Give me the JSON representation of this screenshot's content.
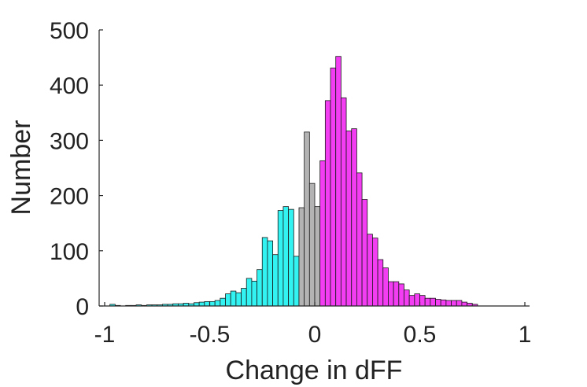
{
  "chart_data": {
    "type": "bar",
    "xlabel": "Change in dFF",
    "ylabel": "Number",
    "xlim": [
      -1,
      1
    ],
    "ylim": [
      0,
      500
    ],
    "xticks": [
      -1,
      -0.5,
      0,
      0.5,
      1
    ],
    "xtick_labels": [
      "-1",
      "-0.5",
      "0",
      "0.5",
      "1"
    ],
    "yticks": [
      0,
      100,
      200,
      300,
      400,
      500
    ],
    "ytick_labels": [
      "0",
      "100",
      "200",
      "300",
      "400",
      "500"
    ],
    "grid": false,
    "bin_width": 0.025,
    "series": [
      {
        "color": "#33f2f2",
        "bins": [
          {
            "x0": -0.975,
            "x1": -0.95,
            "y": 3
          },
          {
            "x0": -0.95,
            "x1": -0.925,
            "y": 1
          },
          {
            "x0": -0.9,
            "x1": -0.875,
            "y": 1
          },
          {
            "x0": -0.875,
            "x1": -0.85,
            "y": 1
          },
          {
            "x0": -0.85,
            "x1": -0.825,
            "y": 2
          },
          {
            "x0": -0.825,
            "x1": -0.8,
            "y": 1
          },
          {
            "x0": -0.8,
            "x1": -0.775,
            "y": 2
          },
          {
            "x0": -0.775,
            "x1": -0.75,
            "y": 2
          },
          {
            "x0": -0.75,
            "x1": -0.725,
            "y": 2
          },
          {
            "x0": -0.725,
            "x1": -0.7,
            "y": 3
          },
          {
            "x0": -0.7,
            "x1": -0.675,
            "y": 3
          },
          {
            "x0": -0.675,
            "x1": -0.65,
            "y": 4
          },
          {
            "x0": -0.65,
            "x1": -0.625,
            "y": 4
          },
          {
            "x0": -0.625,
            "x1": -0.6,
            "y": 5
          },
          {
            "x0": -0.6,
            "x1": -0.575,
            "y": 4
          },
          {
            "x0": -0.575,
            "x1": -0.55,
            "y": 6
          },
          {
            "x0": -0.55,
            "x1": -0.525,
            "y": 7
          },
          {
            "x0": -0.525,
            "x1": -0.5,
            "y": 8
          },
          {
            "x0": -0.5,
            "x1": -0.475,
            "y": 8
          },
          {
            "x0": -0.475,
            "x1": -0.45,
            "y": 10
          },
          {
            "x0": -0.45,
            "x1": -0.425,
            "y": 14
          },
          {
            "x0": -0.425,
            "x1": -0.4,
            "y": 22
          },
          {
            "x0": -0.4,
            "x1": -0.375,
            "y": 27
          },
          {
            "x0": -0.375,
            "x1": -0.35,
            "y": 24
          },
          {
            "x0": -0.35,
            "x1": -0.325,
            "y": 32
          },
          {
            "x0": -0.325,
            "x1": -0.3,
            "y": 50
          },
          {
            "x0": -0.3,
            "x1": -0.275,
            "y": 45
          },
          {
            "x0": -0.275,
            "x1": -0.25,
            "y": 66
          },
          {
            "x0": -0.25,
            "x1": -0.225,
            "y": 124
          },
          {
            "x0": -0.225,
            "x1": -0.2,
            "y": 118
          },
          {
            "x0": -0.2,
            "x1": -0.175,
            "y": 93
          },
          {
            "x0": -0.175,
            "x1": -0.15,
            "y": 173
          },
          {
            "x0": -0.15,
            "x1": -0.125,
            "y": 180
          },
          {
            "x0": -0.125,
            "x1": -0.1,
            "y": 175
          },
          {
            "x0": -0.1,
            "x1": -0.075,
            "y": 90
          }
        ]
      },
      {
        "color": "#b3b3b3",
        "bins": [
          {
            "x0": -0.075,
            "x1": -0.05,
            "y": 178
          },
          {
            "x0": -0.05,
            "x1": -0.025,
            "y": 315
          },
          {
            "x0": -0.025,
            "x1": 0,
            "y": 222
          },
          {
            "x0": 0,
            "x1": 0.025,
            "y": 180
          }
        ]
      },
      {
        "color": "#f23df2",
        "bins": [
          {
            "x0": 0.025,
            "x1": 0.05,
            "y": 263
          },
          {
            "x0": 0.05,
            "x1": 0.075,
            "y": 372
          },
          {
            "x0": 0.075,
            "x1": 0.1,
            "y": 431
          },
          {
            "x0": 0.1,
            "x1": 0.125,
            "y": 452
          },
          {
            "x0": 0.125,
            "x1": 0.15,
            "y": 377
          },
          {
            "x0": 0.15,
            "x1": 0.175,
            "y": 317
          },
          {
            "x0": 0.175,
            "x1": 0.2,
            "y": 321
          },
          {
            "x0": 0.2,
            "x1": 0.225,
            "y": 241
          },
          {
            "x0": 0.225,
            "x1": 0.25,
            "y": 193
          },
          {
            "x0": 0.25,
            "x1": 0.275,
            "y": 130
          },
          {
            "x0": 0.275,
            "x1": 0.3,
            "y": 123
          },
          {
            "x0": 0.3,
            "x1": 0.325,
            "y": 84
          },
          {
            "x0": 0.325,
            "x1": 0.35,
            "y": 69
          },
          {
            "x0": 0.35,
            "x1": 0.375,
            "y": 44
          },
          {
            "x0": 0.375,
            "x1": 0.4,
            "y": 44
          },
          {
            "x0": 0.4,
            "x1": 0.425,
            "y": 40
          },
          {
            "x0": 0.425,
            "x1": 0.45,
            "y": 29
          },
          {
            "x0": 0.45,
            "x1": 0.475,
            "y": 19
          },
          {
            "x0": 0.475,
            "x1": 0.5,
            "y": 22
          },
          {
            "x0": 0.5,
            "x1": 0.525,
            "y": 19
          },
          {
            "x0": 0.525,
            "x1": 0.55,
            "y": 14
          },
          {
            "x0": 0.55,
            "x1": 0.575,
            "y": 14
          },
          {
            "x0": 0.575,
            "x1": 0.6,
            "y": 12
          },
          {
            "x0": 0.6,
            "x1": 0.625,
            "y": 11
          },
          {
            "x0": 0.625,
            "x1": 0.65,
            "y": 10
          },
          {
            "x0": 0.65,
            "x1": 0.675,
            "y": 10
          },
          {
            "x0": 0.675,
            "x1": 0.7,
            "y": 10
          },
          {
            "x0": 0.7,
            "x1": 0.725,
            "y": 7
          },
          {
            "x0": 0.725,
            "x1": 0.75,
            "y": 5
          },
          {
            "x0": 0.75,
            "x1": 0.775,
            "y": 3
          }
        ]
      }
    ]
  }
}
